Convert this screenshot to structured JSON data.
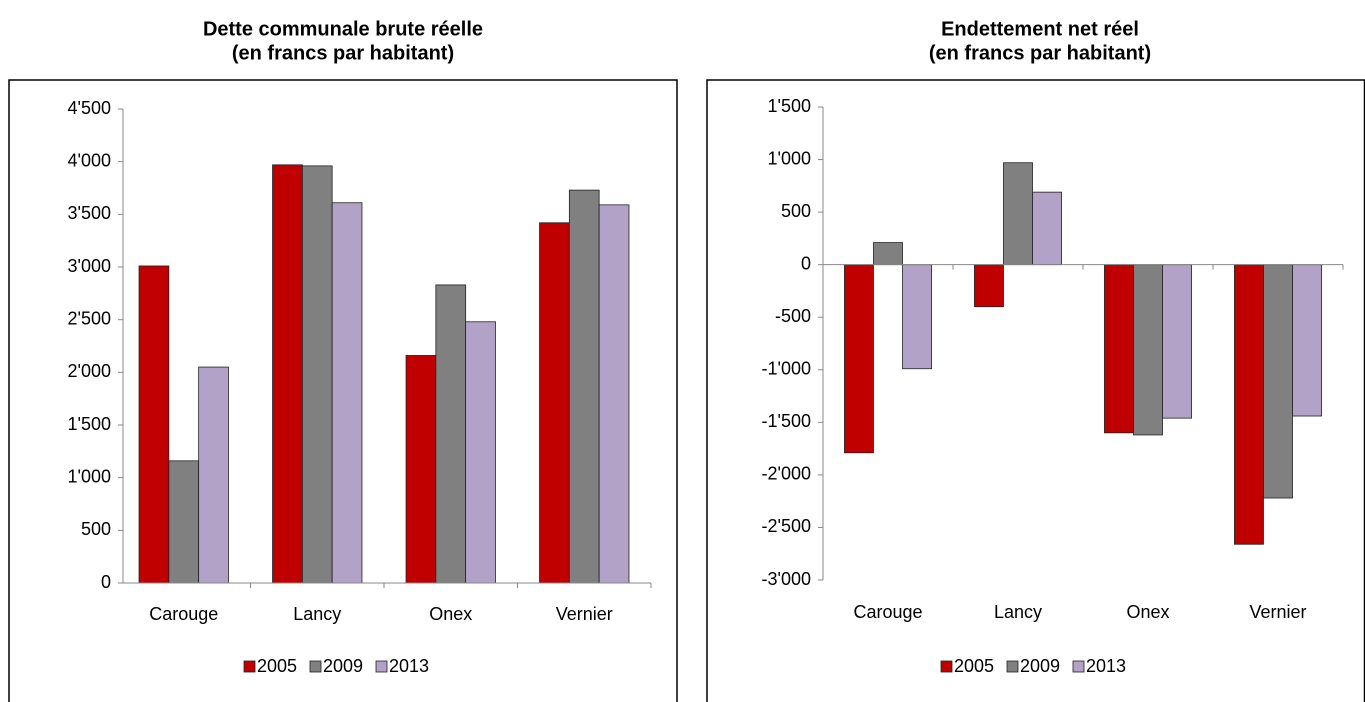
{
  "chart_data": [
    {
      "type": "bar",
      "title": "Dette communale brute réelle",
      "subtitle": "(en francs par habitant)",
      "categories": [
        "Carouge",
        "Lancy",
        "Onex",
        "Vernier"
      ],
      "series": [
        {
          "name": "2005",
          "color": "#c00000",
          "values": [
            3010,
            3970,
            2160,
            3420
          ]
        },
        {
          "name": "2009",
          "color": "#808080",
          "values": [
            1160,
            3960,
            2830,
            3730
          ]
        },
        {
          "name": "2013",
          "color": "#b3a2c7",
          "values": [
            2050,
            3610,
            2480,
            3590
          ]
        }
      ],
      "ylim": [
        0,
        4500
      ],
      "yticks": [
        0,
        500,
        {
          "value": 1000,
          "label": "1'000"
        },
        {
          "value": 1500,
          "label": "1'500"
        },
        {
          "value": 2000,
          "label": "2'000"
        },
        {
          "value": 2500,
          "label": "2'500"
        },
        {
          "value": 3000,
          "label": "3'000"
        },
        {
          "value": 3500,
          "label": "3'500"
        },
        {
          "value": 4000,
          "label": "4'000"
        },
        {
          "value": 4500,
          "label": "4'500"
        }
      ],
      "grid": false,
      "legend": "bottom"
    },
    {
      "type": "bar",
      "title": "Endettement net réel",
      "subtitle": "(en francs par habitant)",
      "categories": [
        "Carouge",
        "Lancy",
        "Onex",
        "Vernier"
      ],
      "series": [
        {
          "name": "2005",
          "color": "#c00000",
          "values": [
            -1790,
            -400,
            -1600,
            -2660
          ]
        },
        {
          "name": "2009",
          "color": "#808080",
          "values": [
            210,
            970,
            -1620,
            -2220
          ]
        },
        {
          "name": "2013",
          "color": "#b3a2c7",
          "values": [
            -990,
            690,
            -1460,
            -1440
          ]
        }
      ],
      "ylim": [
        -3000,
        1500
      ],
      "yticks": [
        {
          "value": -3000,
          "label": "-3'000"
        },
        {
          "value": -2500,
          "label": "-2'500"
        },
        {
          "value": -2000,
          "label": "-2'000"
        },
        {
          "value": -1500,
          "label": "-1'500"
        },
        {
          "value": -1000,
          "label": "-1'000"
        },
        -500,
        0,
        500,
        {
          "value": 1000,
          "label": "1'000"
        },
        {
          "value": 1500,
          "label": "1'500"
        }
      ],
      "grid": false,
      "legend": "bottom"
    }
  ]
}
